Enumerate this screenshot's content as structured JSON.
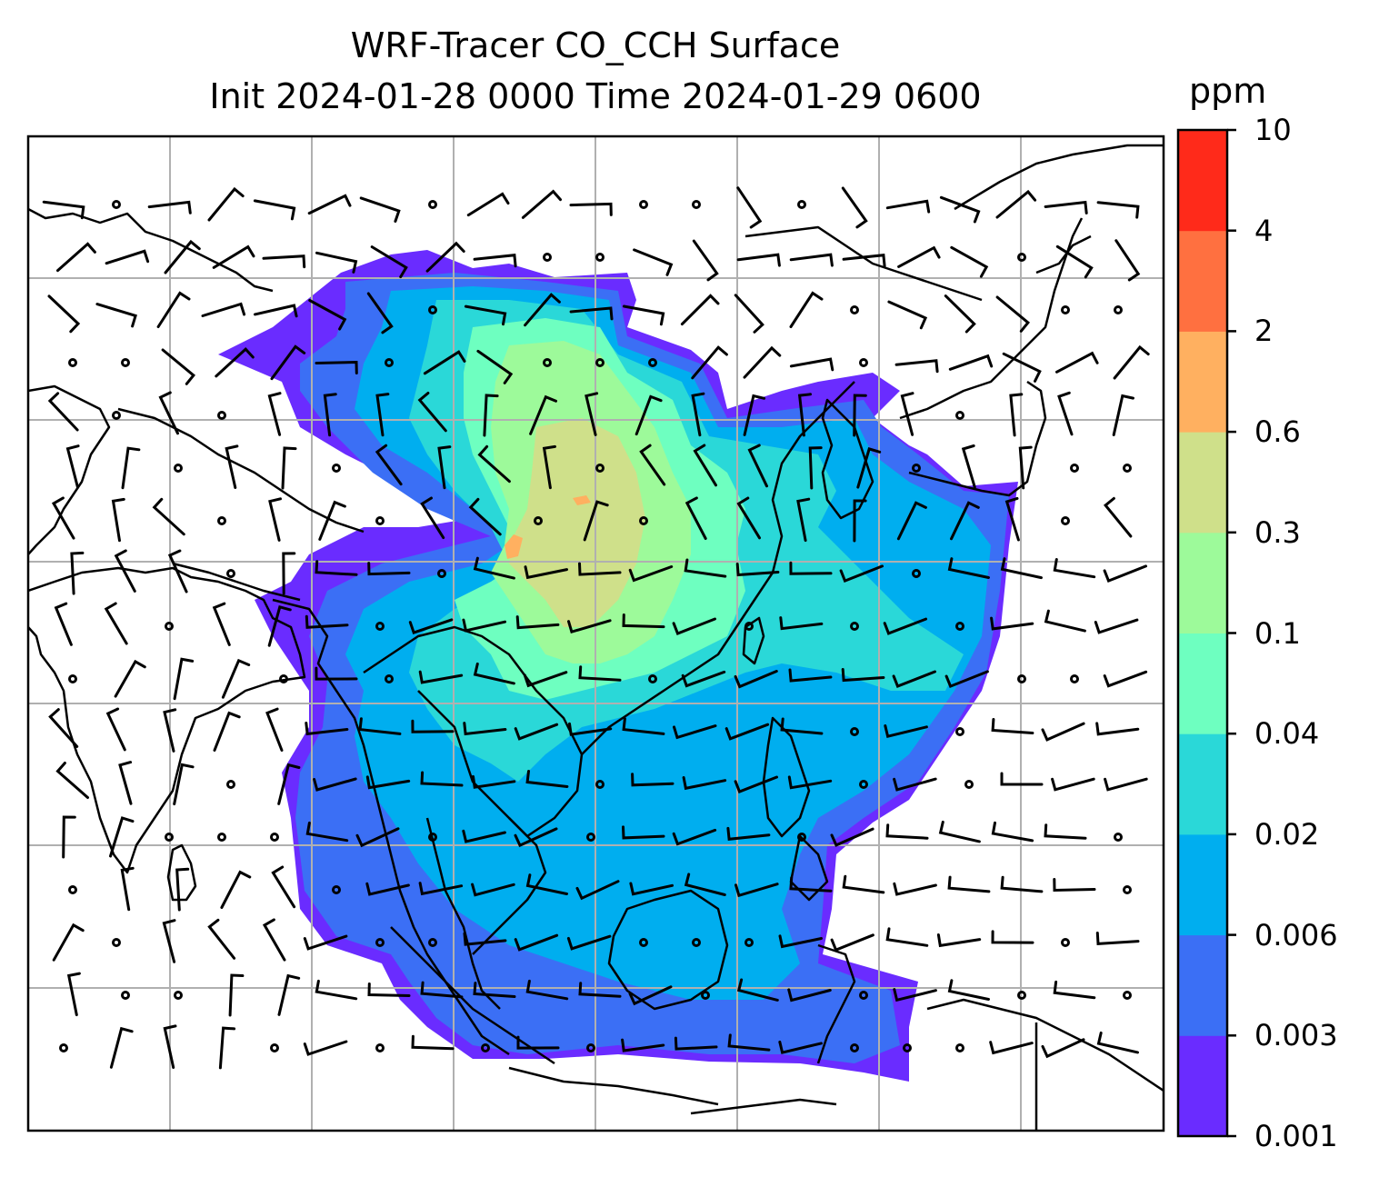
{
  "title": {
    "line1": "WRF-Tracer CO_CCH Surface",
    "line2": "Init 2024-01-28 0000 Time 2024-01-29 0600"
  },
  "colorbar": {
    "unit": "ppm",
    "ticks": [
      "0.001",
      "0.003",
      "0.006",
      "0.02",
      "0.04",
      "0.1",
      "0.3",
      "0.6",
      "2",
      "4",
      "10"
    ],
    "colors": [
      "#6a2cff",
      "#3b6ff5",
      "#00aeef",
      "#2ad8d8",
      "#6effc0",
      "#9dfa9a",
      "#cfe08a",
      "#ffb060",
      "#ff7040",
      "#ff2a1a"
    ]
  },
  "map": {
    "ocean_color": "#ffffff",
    "coast_color": "#000000",
    "grid_color": "#b0b0b0",
    "barb_color": "#000000"
  }
}
